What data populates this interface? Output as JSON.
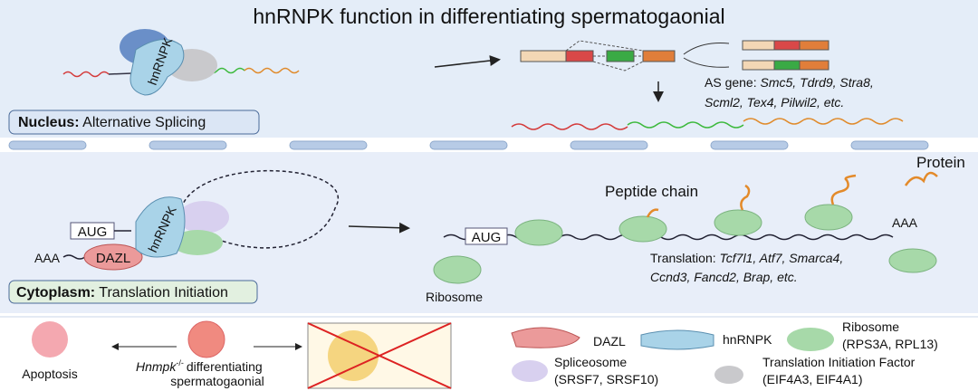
{
  "title": "hnRNPK function in differentiating spermatogaonial",
  "nucleus": {
    "protein_label": "hnRNPK",
    "panel_label": {
      "bold": "Nucleus:",
      "text": "Alternative  Splicing"
    },
    "as_genes": {
      "label": "AS gene:",
      "line1": "Smc5, Tdrd9, Stra8,",
      "line2": "Scml2, Tex4,  Pilwil2, etc."
    }
  },
  "cytoplasm": {
    "complex": {
      "aug": "AUG",
      "protein_label": "hnRNPK",
      "dazl": "DAZL",
      "polya": "AAA"
    },
    "panel_label": {
      "bold": "Cytoplasm:",
      "text": "Translation Initiation"
    },
    "translation": {
      "aug": "AUG",
      "ribosome": "Ribosome",
      "peptide": "Peptide chain",
      "protein": "Protein",
      "polya": "AAA",
      "genes": {
        "label": "Translation:",
        "line1": "Tcf7l1, Atf7, Smarca4,",
        "line2": "Ccnd3, Fancd2, Brap, etc."
      }
    }
  },
  "legend": {
    "apoptosis": "Apoptosis",
    "knockout": {
      "gene": "Hnmpk",
      "sup": "-/-",
      "line1": "differentiating",
      "line2": "spermatogaonial"
    },
    "dazl": "DAZL",
    "hnrnpk": "hnRNPK",
    "ribosome": {
      "line1": "Ribosome",
      "line2": "(RPS3A, RPL13)"
    },
    "spliceosome": {
      "line1": "Spliceosome",
      "line2": "(SRSF7, SRSF10)"
    },
    "tif": {
      "line1": "Translation Initiation Factor",
      "line2": "(EIF4A3, EIF4A1)"
    }
  }
}
